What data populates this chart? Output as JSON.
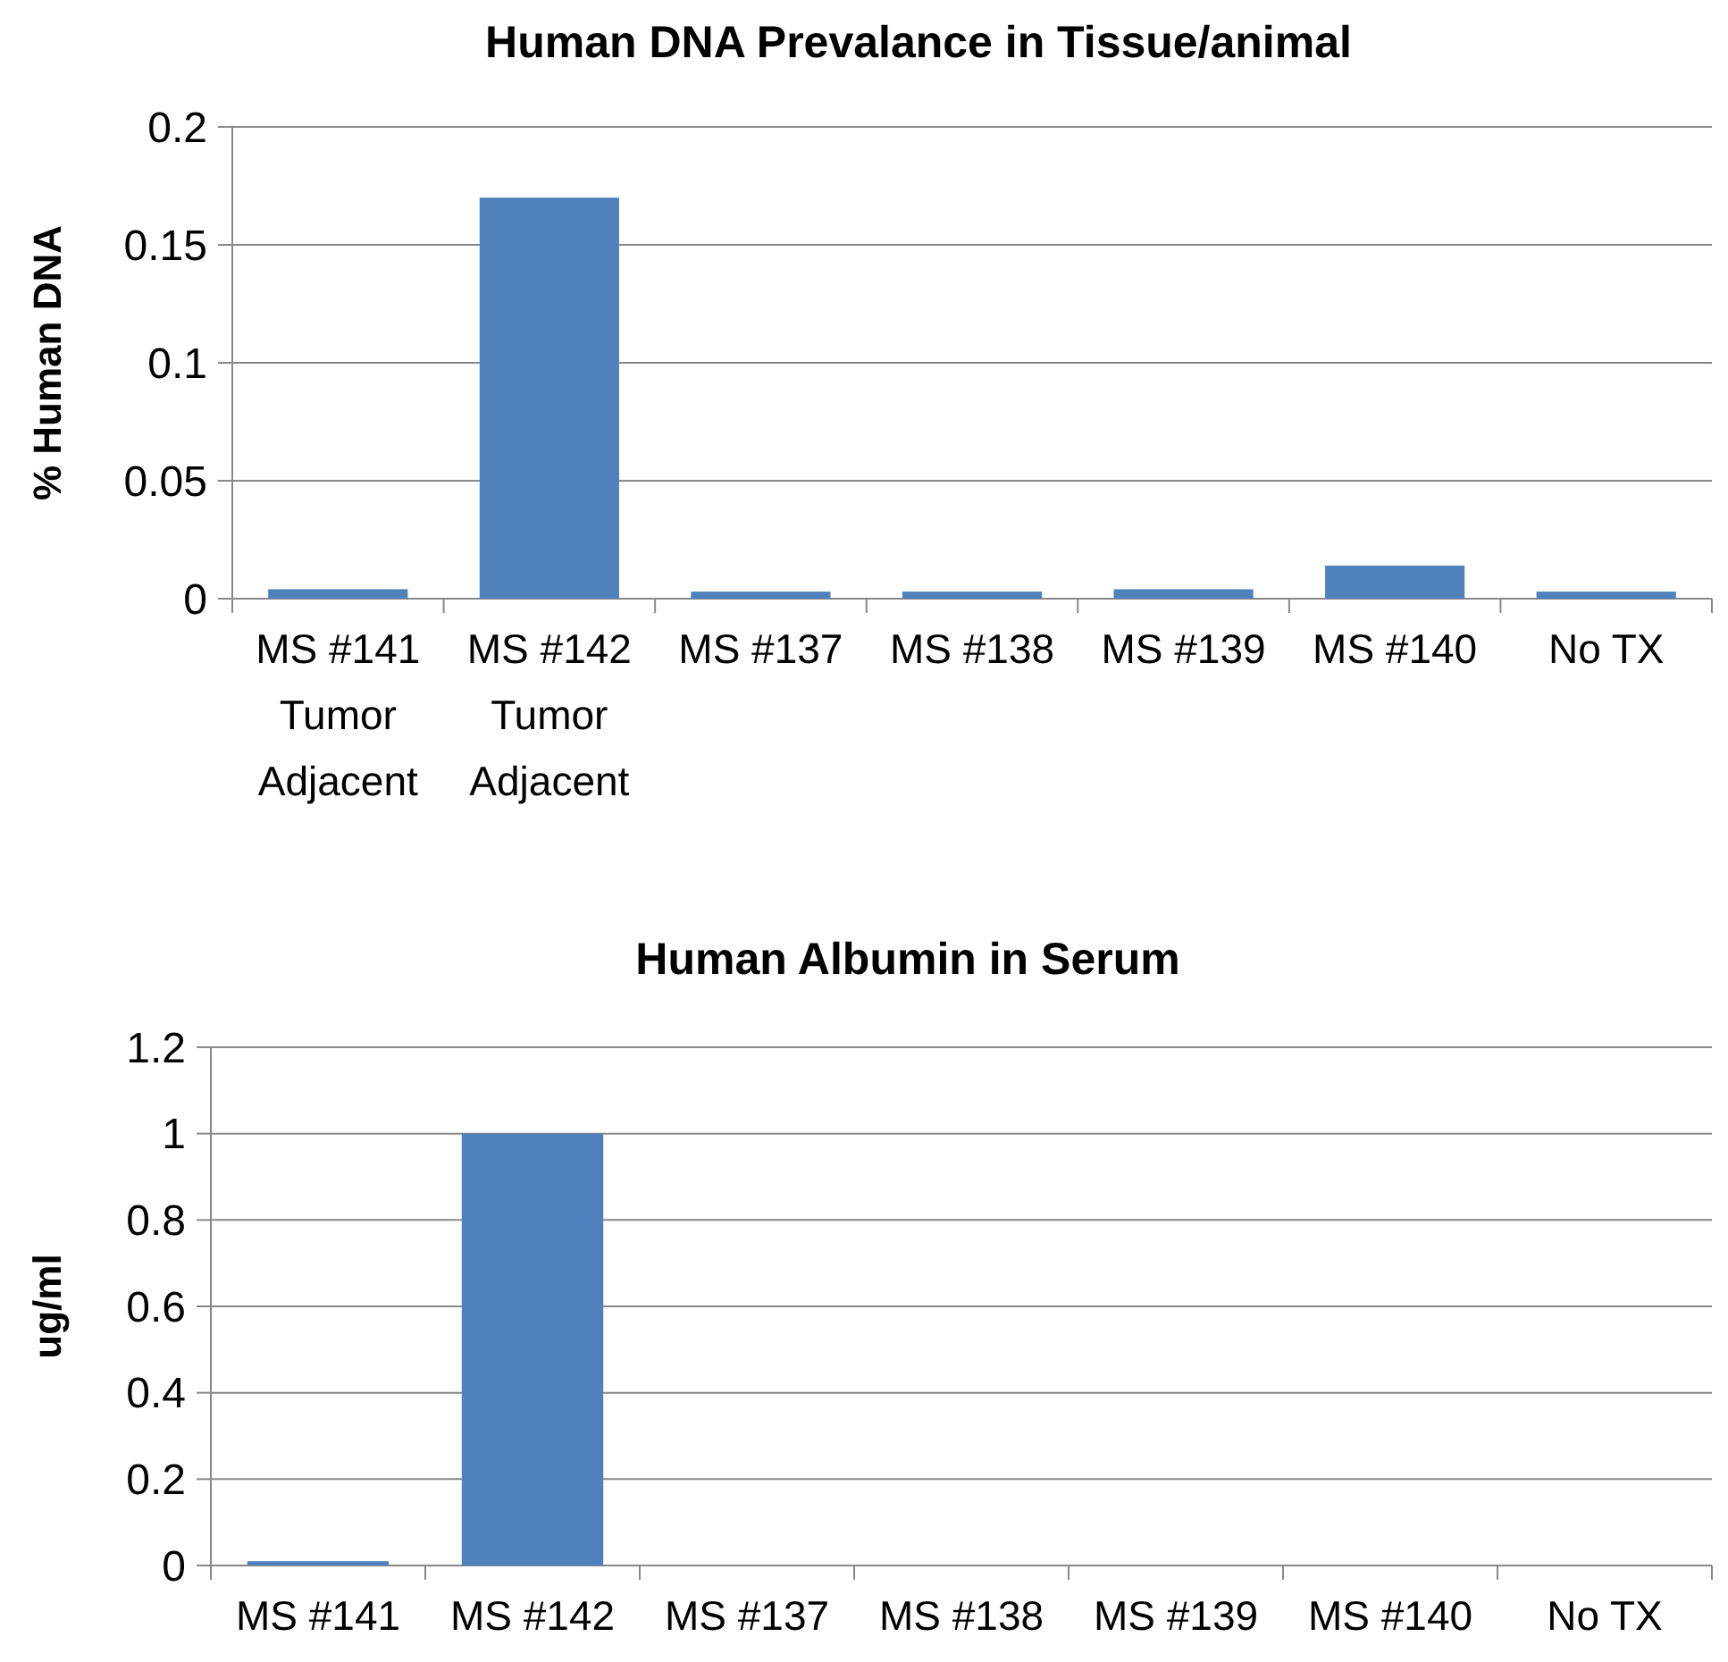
{
  "chart_data": [
    {
      "type": "bar",
      "title": "Human DNA Prevalance in Tissue/animal",
      "ylabel": "% Human DNA",
      "categories": [
        "MS #141 Tumor Adjacent",
        "MS #142 Tumor Adjacent",
        "MS #137",
        "MS #138",
        "MS #139",
        "MS #140",
        "No TX"
      ],
      "values": [
        0.004,
        0.17,
        0.003,
        0.003,
        0.004,
        0.014,
        0.003
      ],
      "color": "#4f81bd",
      "ylim": [
        0,
        0.2
      ],
      "yticks": [
        0,
        0.05,
        0.1,
        0.15,
        0.2
      ],
      "grid": "y"
    },
    {
      "type": "bar",
      "title": "Human Albumin in Serum",
      "ylabel": "ug/ml",
      "categories": [
        "MS #141",
        "MS #142",
        "MS #137",
        "MS #138",
        "MS #139",
        "MS #140",
        "No TX"
      ],
      "values": [
        0.01,
        1,
        0,
        0,
        0,
        0,
        0
      ],
      "color": "#4f81bd",
      "ylim": [
        0,
        1.2
      ],
      "yticks": [
        0,
        0.2,
        0.4,
        0.6,
        0.8,
        1,
        1.2
      ],
      "grid": "y"
    }
  ]
}
